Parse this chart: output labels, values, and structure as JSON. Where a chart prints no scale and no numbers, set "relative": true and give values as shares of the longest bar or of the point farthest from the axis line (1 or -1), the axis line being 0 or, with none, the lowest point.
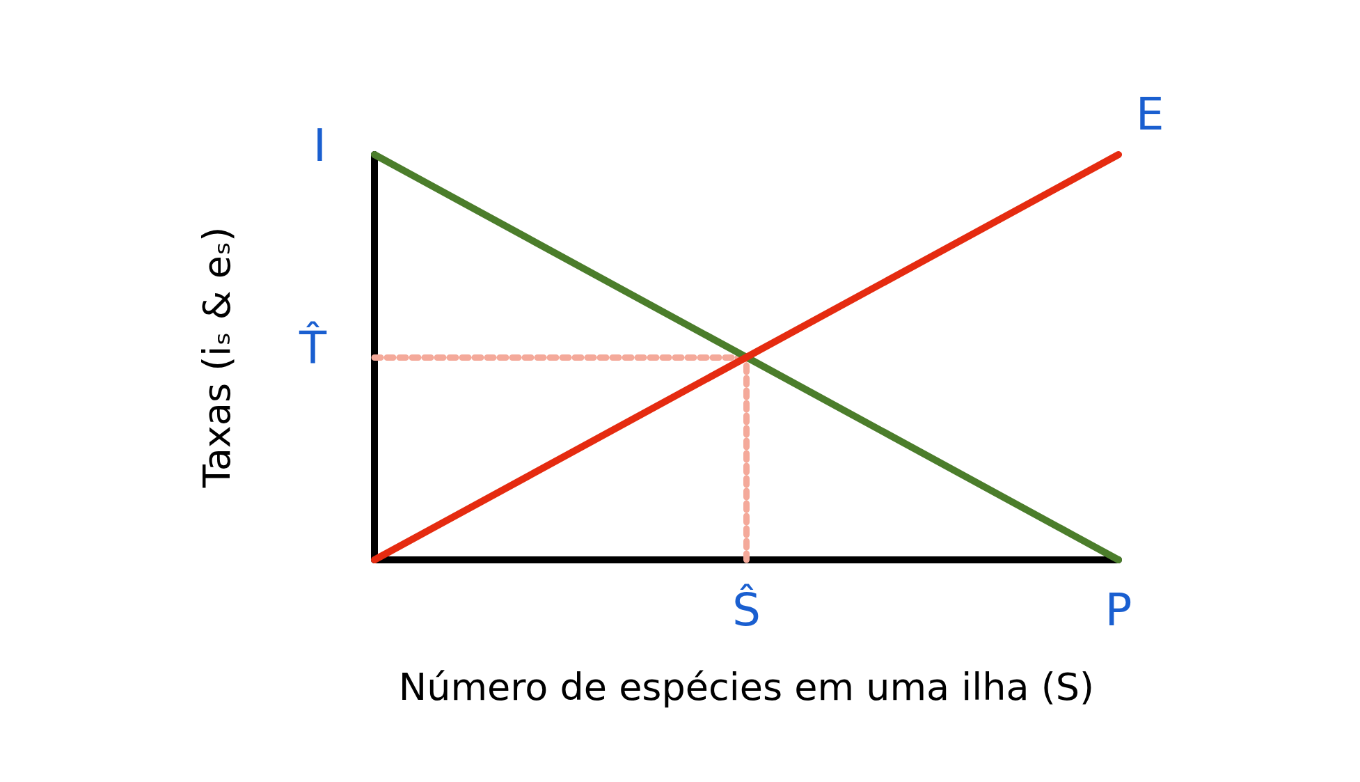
{
  "chart_data": {
    "type": "line",
    "relative": true,
    "xlabel": "Número de espécies em uma ilha (S)",
    "ylabel": "Taxas (iₛ & eₛ)",
    "categories": [
      null,
      "Ŝ",
      "P"
    ],
    "series": [
      {
        "color": "#4b7d2b",
        "values": [
          1,
          0.5,
          0
        ]
      },
      {
        "color": "#e52b10",
        "values": [
          0,
          0.5,
          1
        ]
      }
    ],
    "annotations": [
      "I",
      {
        "text": "E",
        "x": "P",
        "y": 1
      }
    ],
    "ref_lines": [
      {
        "axis": "y",
        "value": 0.5,
        "label": "T̂",
        "color": "#f4a99a",
        "line_style": "dotted"
      },
      {
        "axis": "x",
        "value": "Ŝ",
        "color": "#f4a99a",
        "line_style": "dotted"
      }
    ],
    "marker": "none"
  }
}
